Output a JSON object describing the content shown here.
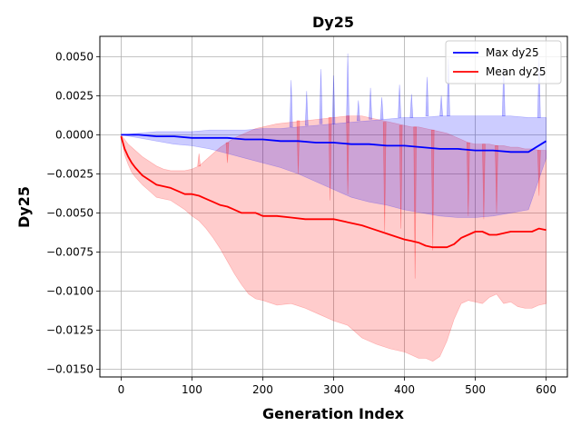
{
  "chart_data": {
    "type": "line",
    "title": "Dy25",
    "xlabel": "Generation Index",
    "ylabel": "Dy25",
    "xlim": [
      -30,
      630
    ],
    "ylim": [
      -0.0155,
      0.0063
    ],
    "xticks": [
      0,
      100,
      200,
      300,
      400,
      500,
      600
    ],
    "xtick_labels": [
      "0",
      "100",
      "200",
      "300",
      "400",
      "500",
      "600"
    ],
    "yticks": [
      0.005,
      0.0025,
      0.0,
      -0.0025,
      -0.005,
      -0.0075,
      -0.01,
      -0.0125,
      -0.015
    ],
    "ytick_labels": [
      "0.0050",
      "0.0025",
      "0.0000",
      "−0.0025",
      "−0.0050",
      "−0.0075",
      "−0.0100",
      "−0.0125",
      "−0.0150"
    ],
    "grid": true,
    "legend_position": "top-right",
    "series": [
      {
        "name": "Max dy25",
        "color": "#0000ff",
        "band_color": "#0000ff",
        "x": [
          0,
          25,
          50,
          75,
          100,
          125,
          150,
          175,
          200,
          225,
          250,
          275,
          300,
          325,
          350,
          375,
          400,
          425,
          450,
          475,
          500,
          525,
          550,
          575,
          600
        ],
        "y": [
          0.0,
          0.0,
          -0.0001,
          -0.0001,
          -0.0002,
          -0.0002,
          -0.0002,
          -0.0003,
          -0.0003,
          -0.0004,
          -0.0004,
          -0.0005,
          -0.0005,
          -0.0006,
          -0.0006,
          -0.0007,
          -0.0007,
          -0.0008,
          -0.0009,
          -0.0009,
          -0.001,
          -0.001,
          -0.0011,
          -0.0011,
          -0.0004
        ],
        "band_upper": [
          0.0,
          0.0001,
          0.0002,
          0.0002,
          0.0002,
          0.0003,
          0.0003,
          0.0003,
          0.0004,
          0.0004,
          0.0005,
          0.0006,
          0.0007,
          0.0008,
          0.0009,
          0.001,
          0.0011,
          0.0011,
          0.0012,
          0.0012,
          0.0012,
          0.0012,
          0.0012,
          0.0011,
          0.0011
        ],
        "band_lower": [
          0.0,
          -0.0002,
          -0.0004,
          -0.0006,
          -0.0007,
          -0.0009,
          -0.0012,
          -0.0015,
          -0.0018,
          -0.0021,
          -0.0025,
          -0.003,
          -0.0035,
          -0.004,
          -0.0043,
          -0.0045,
          -0.0048,
          -0.005,
          -0.0052,
          -0.0053,
          -0.0053,
          -0.0052,
          -0.005,
          -0.0048,
          -0.0015
        ],
        "spikes": [
          {
            "x": 240,
            "y": 0.0035
          },
          {
            "x": 262,
            "y": 0.0028
          },
          {
            "x": 282,
            "y": 0.0042
          },
          {
            "x": 300,
            "y": 0.0038
          },
          {
            "x": 320,
            "y": 0.0052
          },
          {
            "x": 335,
            "y": 0.0022
          },
          {
            "x": 352,
            "y": 0.003
          },
          {
            "x": 368,
            "y": 0.0024
          },
          {
            "x": 393,
            "y": 0.0032
          },
          {
            "x": 410,
            "y": 0.0026
          },
          {
            "x": 432,
            "y": 0.0037
          },
          {
            "x": 452,
            "y": 0.0025
          },
          {
            "x": 462,
            "y": 0.0049
          },
          {
            "x": 540,
            "y": 0.0044
          },
          {
            "x": 590,
            "y": 0.005
          }
        ]
      },
      {
        "name": "Mean dy25",
        "color": "#ff0000",
        "band_color": "#ff0000",
        "x": [
          0,
          5,
          10,
          15,
          20,
          30,
          40,
          50,
          60,
          70,
          80,
          90,
          100,
          110,
          120,
          130,
          140,
          150,
          160,
          170,
          180,
          190,
          200,
          220,
          240,
          260,
          280,
          300,
          320,
          340,
          360,
          380,
          400,
          410,
          420,
          430,
          440,
          450,
          460,
          470,
          480,
          490,
          500,
          510,
          520,
          530,
          540,
          550,
          560,
          570,
          580,
          590,
          600
        ],
        "y": [
          -0.0001,
          -0.0009,
          -0.0014,
          -0.0018,
          -0.0021,
          -0.0026,
          -0.0029,
          -0.0032,
          -0.0033,
          -0.0034,
          -0.0036,
          -0.0038,
          -0.0038,
          -0.0039,
          -0.0041,
          -0.0043,
          -0.0045,
          -0.0046,
          -0.0048,
          -0.005,
          -0.005,
          -0.005,
          -0.0052,
          -0.0052,
          -0.0053,
          -0.0054,
          -0.0054,
          -0.0054,
          -0.0056,
          -0.0058,
          -0.0061,
          -0.0064,
          -0.0067,
          -0.0068,
          -0.0069,
          -0.0071,
          -0.0072,
          -0.0072,
          -0.0072,
          -0.007,
          -0.0066,
          -0.0064,
          -0.0062,
          -0.0062,
          -0.0064,
          -0.0064,
          -0.0063,
          -0.0062,
          -0.0062,
          -0.0062,
          -0.0062,
          -0.006,
          -0.0061
        ],
        "band_upper": [
          0.0,
          -0.0003,
          -0.0006,
          -0.0008,
          -0.001,
          -0.0014,
          -0.0017,
          -0.002,
          -0.0022,
          -0.0023,
          -0.0023,
          -0.0023,
          -0.0022,
          -0.002,
          -0.0016,
          -0.0012,
          -0.0008,
          -0.0005,
          -0.0002,
          0.0,
          0.0002,
          0.0004,
          0.0005,
          0.0007,
          0.0008,
          0.0009,
          0.001,
          0.0011,
          0.0012,
          0.0012,
          0.001,
          0.0008,
          0.0006,
          0.0005,
          0.0005,
          0.0004,
          0.0003,
          0.0002,
          0.0001,
          -0.0001,
          -0.0003,
          -0.0005,
          -0.0006,
          -0.0006,
          -0.0006,
          -0.0007,
          -0.0007,
          -0.0008,
          -0.0008,
          -0.0009,
          -0.0009,
          -0.001,
          -0.001
        ],
        "band_lower": [
          -0.0001,
          -0.0013,
          -0.0019,
          -0.0024,
          -0.0027,
          -0.0032,
          -0.0036,
          -0.004,
          -0.0041,
          -0.0042,
          -0.0045,
          -0.0048,
          -0.0052,
          -0.0055,
          -0.006,
          -0.0066,
          -0.0073,
          -0.0081,
          -0.0089,
          -0.0096,
          -0.0102,
          -0.0105,
          -0.0106,
          -0.0109,
          -0.0108,
          -0.0111,
          -0.0115,
          -0.0119,
          -0.0122,
          -0.013,
          -0.0134,
          -0.0137,
          -0.0139,
          -0.0141,
          -0.0143,
          -0.0143,
          -0.0145,
          -0.0142,
          -0.0132,
          -0.0118,
          -0.0108,
          -0.0106,
          -0.0107,
          -0.0108,
          -0.0104,
          -0.0102,
          -0.0108,
          -0.0107,
          -0.011,
          -0.0111,
          -0.0111,
          -0.0109,
          -0.0108
        ],
        "spikes": [
          {
            "x": 110,
            "y": -0.0012
          },
          {
            "x": 150,
            "y": -0.0018
          },
          {
            "x": 250,
            "y": -0.0025
          },
          {
            "x": 295,
            "y": -0.0042
          },
          {
            "x": 320,
            "y": -0.0038
          },
          {
            "x": 372,
            "y": -0.0062
          },
          {
            "x": 395,
            "y": -0.006
          },
          {
            "x": 415,
            "y": -0.0092
          },
          {
            "x": 440,
            "y": -0.0074
          },
          {
            "x": 490,
            "y": -0.0052
          },
          {
            "x": 512,
            "y": -0.0054
          },
          {
            "x": 530,
            "y": -0.005
          },
          {
            "x": 590,
            "y": -0.0039
          }
        ]
      }
    ]
  }
}
